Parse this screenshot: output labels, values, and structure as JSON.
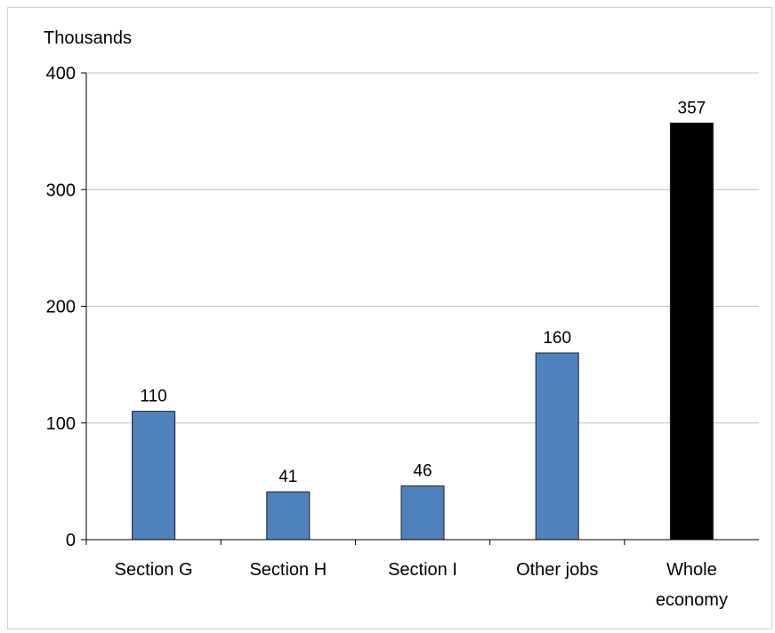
{
  "chart_data": {
    "type": "bar",
    "ylabel": "Thousands",
    "categories": [
      [
        "Section G"
      ],
      [
        "Section H"
      ],
      [
        "Section I"
      ],
      [
        "Other jobs"
      ],
      [
        "Whole",
        "economy"
      ]
    ],
    "values": [
      110,
      41,
      46,
      160,
      357
    ],
    "data_labels": [
      "110",
      "41",
      "46",
      "160",
      "357"
    ],
    "bar_colors": [
      "#4f81bd",
      "#4f81bd",
      "#4f81bd",
      "#4f81bd",
      "#000000"
    ],
    "ylim": [
      0,
      400
    ],
    "yticks": [
      0,
      100,
      200,
      300,
      400
    ],
    "ytick_labels": [
      "0",
      "100",
      "200",
      "300",
      "400"
    ],
    "grid": true,
    "grid_color": "#c0c0c0",
    "bar_edge_color": "#1f1f1f",
    "legend": "none"
  }
}
